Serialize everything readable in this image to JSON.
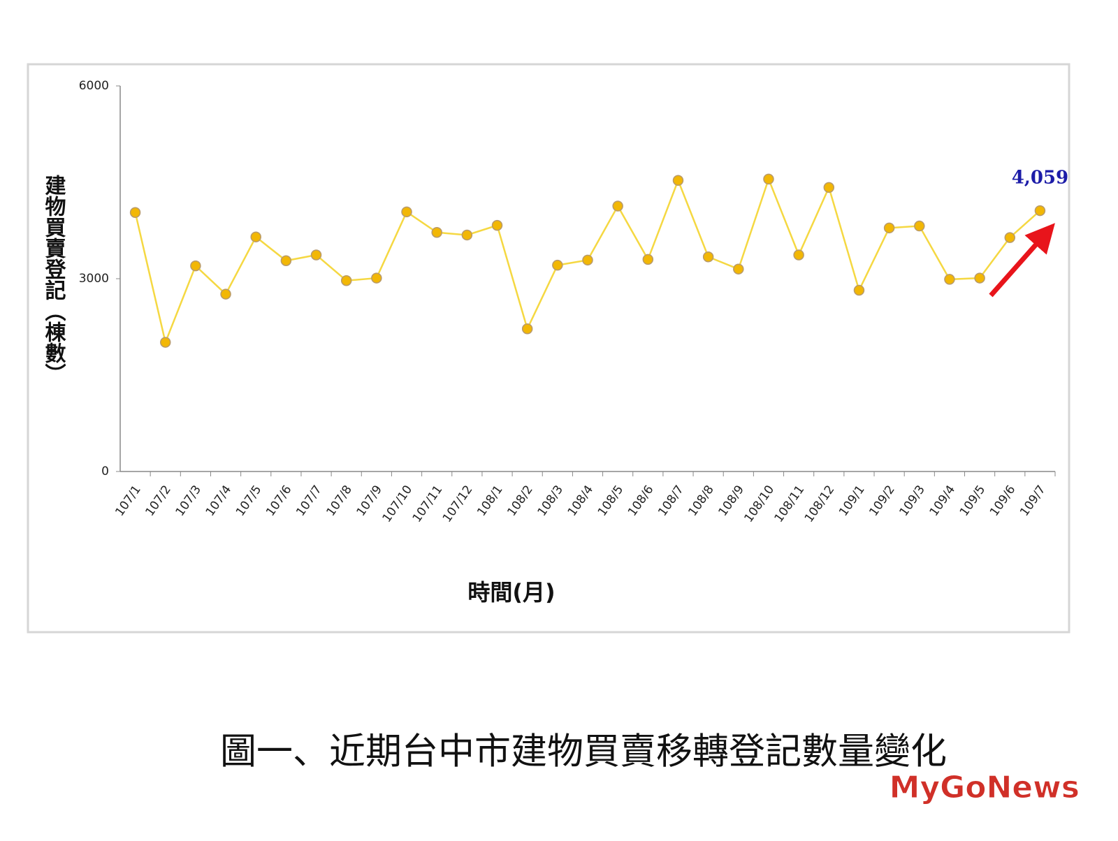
{
  "chart_data": {
    "type": "line",
    "y_label": "建物買賣登記（棟數）",
    "x_label": "時間(月)",
    "caption": "圖一、近期台中市建物買賣移轉登記數量變化",
    "watermark": "MyGoNews",
    "categories": [
      "107/1",
      "107/2",
      "107/3",
      "107/4",
      "107/5",
      "107/6",
      "107/7",
      "107/8",
      "107/9",
      "107/10",
      "107/11",
      "107/12",
      "108/1",
      "108/2",
      "108/3",
      "108/4",
      "108/5",
      "108/6",
      "108/7",
      "108/8",
      "108/9",
      "108/10",
      "108/11",
      "108/12",
      "109/1",
      "109/2",
      "109/3",
      "109/4",
      "109/5",
      "109/6",
      "109/7"
    ],
    "values": [
      4030,
      2010,
      3200,
      2760,
      3650,
      3280,
      3370,
      2970,
      3010,
      4040,
      3720,
      3680,
      3830,
      2220,
      3210,
      3290,
      4130,
      3300,
      4530,
      3340,
      3150,
      4550,
      3370,
      4420,
      2820,
      3790,
      3820,
      2990,
      3010,
      3640,
      4059
    ],
    "value_labels": [
      null,
      null,
      null,
      null,
      null,
      null,
      null,
      null,
      null,
      null,
      null,
      null,
      null,
      null,
      null,
      null,
      null,
      null,
      null,
      null,
      null,
      null,
      null,
      null,
      null,
      null,
      null,
      null,
      null,
      null,
      "4,059"
    ],
    "color": "#f5d842",
    "marker_color": "#f2b705",
    "label_color": "#1c1ca8",
    "ylim": [
      0,
      6000
    ],
    "yticks": [
      0,
      3000,
      6000
    ],
    "grid": false
  }
}
